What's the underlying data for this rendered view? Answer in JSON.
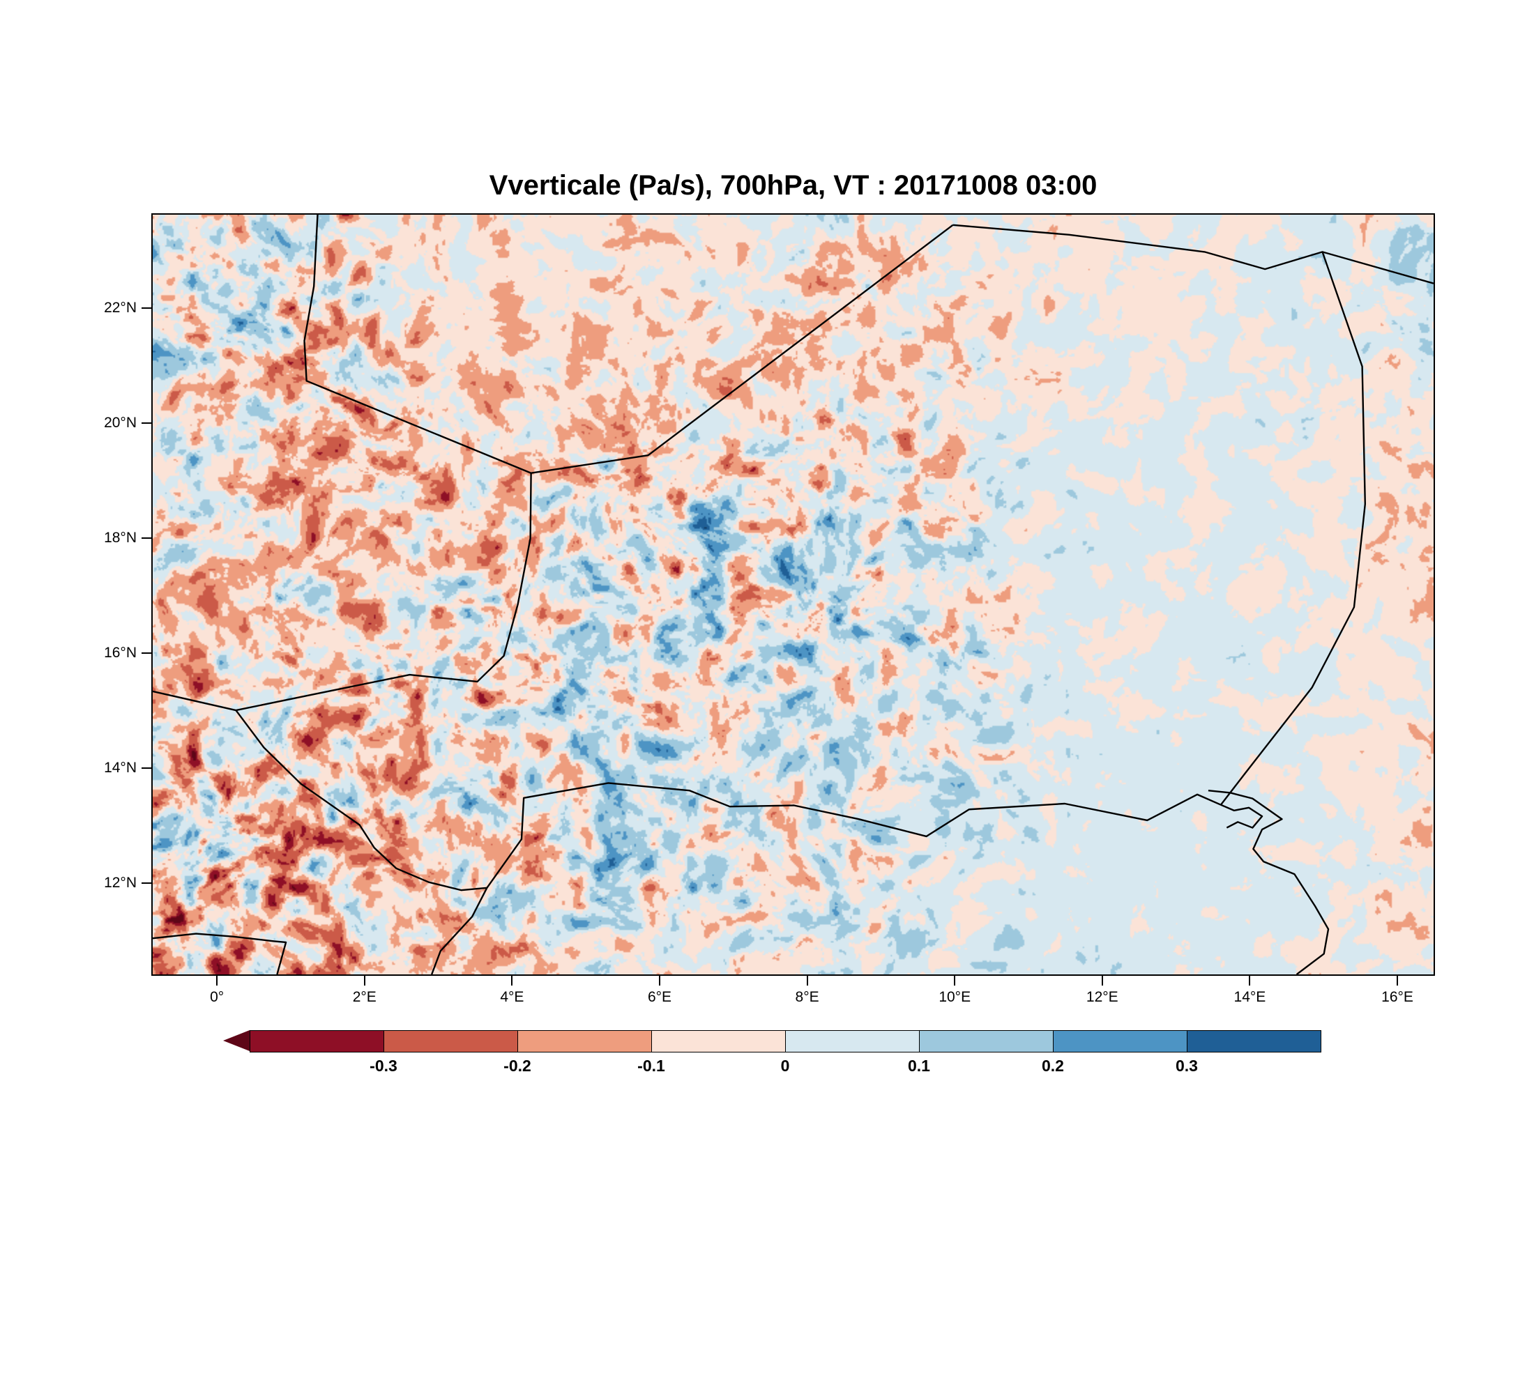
{
  "title": "Vverticale (Pa/s), 700hPa, VT : 20171008  03:00",
  "chart_data": {
    "type": "heatmap",
    "title": "Vverticale (Pa/s), 700hPa, VT : 20171008  03:00",
    "variable": "Vverticale",
    "units": "Pa/s",
    "level": "700hPa",
    "valid_time": "20171008 03:00",
    "x_axis": {
      "tick_labels": [
        "0°",
        "2°E",
        "4°E",
        "6°E",
        "8°E",
        "10°E",
        "12°E",
        "14°E",
        "16°E"
      ],
      "tick_lons": [
        0,
        2,
        4,
        6,
        8,
        10,
        12,
        14,
        16
      ]
    },
    "y_axis": {
      "tick_labels": [
        "22°N",
        "20°N",
        "18°N",
        "16°N",
        "14°N",
        "12°N"
      ],
      "tick_lats": [
        22,
        20,
        18,
        16,
        14,
        12
      ]
    },
    "extent": {
      "lon_min": -0.89,
      "lon_max": 16.51,
      "lat_min": 10.39,
      "lat_max": 23.65
    },
    "colorbar": {
      "labels": [
        "-0.3",
        "-0.2",
        "-0.1",
        "0",
        "0.1",
        "0.2",
        "0.3"
      ],
      "levels": [
        -0.3,
        -0.2,
        -0.1,
        0,
        0.1,
        0.2,
        0.3
      ],
      "arrow_color": "#5e0617",
      "segment_colors": [
        "#8e0f26",
        "#cb5a48",
        "#ee9d7e",
        "#fbe3d7",
        "#d7e8f0",
        "#9dc8dd",
        "#4d94c4",
        "#1f5f96"
      ]
    },
    "field_render": {
      "description": "procedural approximation of the mottled vertical-velocity contour field",
      "seed": 1,
      "thresholds": [
        -0.4,
        -0.3,
        -0.2,
        -0.1,
        0,
        0.1,
        0.2,
        0.3,
        0.4
      ],
      "colors": [
        "#5e0617",
        "#8e0f26",
        "#cb5a48",
        "#ee9d7e",
        "#fbe3d7",
        "#d7e8f0",
        "#9dc8dd",
        "#4d94c4",
        "#1f5f96",
        "#123c63"
      ]
    },
    "borders": [
      [
        [
          1.35,
          23.65
        ],
        [
          1.3,
          22.4
        ],
        [
          1.17,
          21.45
        ],
        [
          1.2,
          20.75
        ],
        [
          4.25,
          19.14
        ]
      ],
      [
        [
          4.25,
          19.14
        ],
        [
          5.84,
          19.45
        ],
        [
          9.98,
          23.47
        ]
      ],
      [
        [
          9.98,
          23.47
        ],
        [
          11.56,
          23.3
        ],
        [
          13.4,
          23.0
        ],
        [
          14.22,
          22.7
        ],
        [
          15.0,
          23.0
        ],
        [
          16.51,
          22.45
        ]
      ],
      [
        [
          15.0,
          23.0
        ],
        [
          15.54,
          21.0
        ],
        [
          15.58,
          18.6
        ],
        [
          15.43,
          16.8
        ],
        [
          14.86,
          15.4
        ],
        [
          13.95,
          13.9
        ],
        [
          13.62,
          13.35
        ]
      ],
      [
        [
          4.25,
          19.14
        ],
        [
          4.24,
          18.0
        ],
        [
          4.07,
          16.85
        ],
        [
          3.88,
          15.95
        ],
        [
          3.52,
          15.5
        ],
        [
          2.6,
          15.62
        ],
        [
          1.3,
          15.28
        ],
        [
          0.24,
          15.0
        ]
      ],
      [
        [
          -0.89,
          15.33
        ],
        [
          0.24,
          15.0
        ]
      ],
      [
        [
          0.24,
          15.0
        ],
        [
          0.62,
          14.35
        ],
        [
          1.12,
          13.72
        ],
        [
          1.92,
          13.0
        ],
        [
          2.12,
          12.6
        ],
        [
          2.42,
          12.24
        ],
        [
          2.86,
          12.0
        ],
        [
          3.3,
          11.86
        ],
        [
          3.65,
          11.9
        ]
      ],
      [
        [
          3.65,
          11.9
        ],
        [
          4.12,
          12.75
        ],
        [
          4.15,
          13.47
        ],
        [
          5.3,
          13.73
        ],
        [
          6.4,
          13.6
        ],
        [
          6.95,
          13.32
        ],
        [
          7.82,
          13.34
        ],
        [
          8.7,
          13.1
        ],
        [
          9.62,
          12.8
        ],
        [
          10.2,
          13.27
        ],
        [
          11.5,
          13.37
        ],
        [
          12.62,
          13.08
        ],
        [
          13.3,
          13.53
        ],
        [
          13.62,
          13.35
        ]
      ],
      [
        [
          3.65,
          11.9
        ],
        [
          3.45,
          11.4
        ],
        [
          3.02,
          10.8
        ],
        [
          2.9,
          10.39
        ]
      ],
      [
        [
          -0.89,
          11.02
        ],
        [
          -0.3,
          11.1
        ],
        [
          0.2,
          11.05
        ],
        [
          0.75,
          10.97
        ],
        [
          0.92,
          10.95
        ],
        [
          0.8,
          10.39
        ]
      ],
      [
        [
          13.45,
          13.6
        ],
        [
          13.75,
          13.56
        ],
        [
          14.05,
          13.46
        ],
        [
          14.45,
          13.1
        ],
        [
          14.18,
          12.92
        ],
        [
          14.06,
          12.58
        ],
        [
          14.2,
          12.36
        ],
        [
          14.62,
          12.14
        ],
        [
          14.9,
          11.58
        ],
        [
          15.08,
          11.18
        ],
        [
          15.02,
          10.75
        ],
        [
          14.65,
          10.39
        ]
      ],
      [
        [
          13.62,
          13.35
        ],
        [
          13.8,
          13.25
        ],
        [
          14.0,
          13.3
        ],
        [
          14.18,
          13.15
        ],
        [
          14.05,
          12.95
        ],
        [
          13.85,
          13.05
        ],
        [
          13.7,
          12.95
        ]
      ]
    ]
  }
}
